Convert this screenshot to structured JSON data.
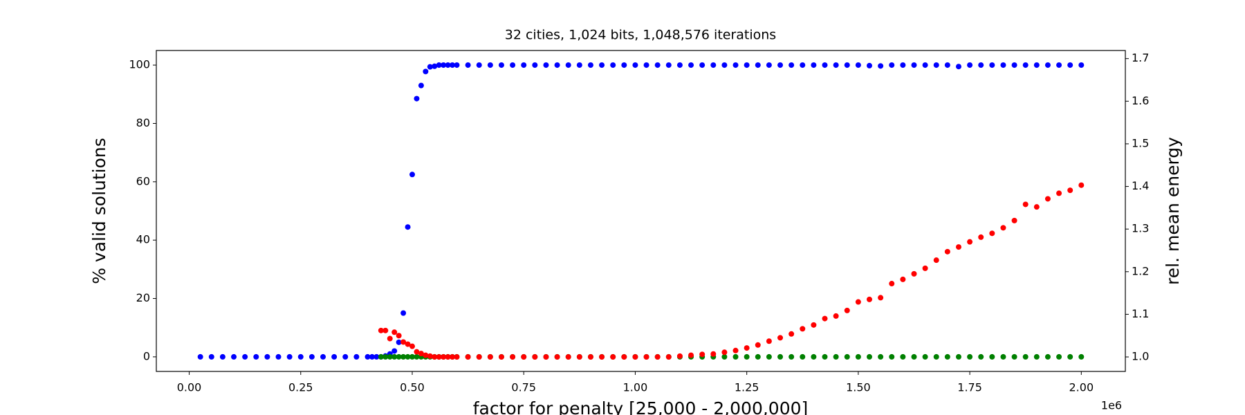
{
  "chart_data": {
    "type": "scatter",
    "title": "32 cities, 1,024 bits, 1,048,576 iterations",
    "xlabel": "factor for penalty [25,000 - 2,000,000]",
    "x_offset_label": "1e6",
    "ylabel": "% valid solutions",
    "ylabel_color": "#0000ff",
    "y2label": "rel. mean energy",
    "y2label_color": "#ff0000",
    "grid": false,
    "xlim": [
      -73750,
      2098750
    ],
    "ylim": [
      -5,
      105
    ],
    "y2lim": [
      0.966,
      1.719
    ],
    "xticks": [
      {
        "value": 0,
        "label": "0.00"
      },
      {
        "value": 250000,
        "label": "0.25"
      },
      {
        "value": 500000,
        "label": "0.50"
      },
      {
        "value": 750000,
        "label": "0.75"
      },
      {
        "value": 1000000,
        "label": "1.00"
      },
      {
        "value": 1250000,
        "label": "1.25"
      },
      {
        "value": 1500000,
        "label": "1.50"
      },
      {
        "value": 1750000,
        "label": "1.75"
      },
      {
        "value": 2000000,
        "label": "2.00"
      }
    ],
    "yticks": [
      0,
      20,
      40,
      60,
      80,
      100
    ],
    "y2ticks": [
      {
        "value": 1.0,
        "label": "1.0"
      },
      1.1,
      1.2,
      1.3,
      1.4,
      1.5,
      1.6,
      1.7
    ],
    "x": [
      25000,
      50000,
      75000,
      100000,
      125000,
      150000,
      175000,
      200000,
      225000,
      250000,
      275000,
      300000,
      325000,
      350000,
      375000,
      400000,
      410000,
      420000,
      430000,
      440000,
      450000,
      460000,
      470000,
      480000,
      490000,
      500000,
      510000,
      520000,
      530000,
      540000,
      550000,
      560000,
      570000,
      580000,
      590000,
      600000,
      625000,
      650000,
      675000,
      700000,
      725000,
      750000,
      775000,
      800000,
      825000,
      850000,
      875000,
      900000,
      925000,
      950000,
      975000,
      1000000,
      1025000,
      1050000,
      1075000,
      1100000,
      1125000,
      1150000,
      1175000,
      1200000,
      1225000,
      1250000,
      1275000,
      1300000,
      1325000,
      1350000,
      1375000,
      1400000,
      1425000,
      1450000,
      1475000,
      1500000,
      1525000,
      1550000,
      1575000,
      1600000,
      1625000,
      1650000,
      1675000,
      1700000,
      1725000,
      1750000,
      1775000,
      1800000,
      1825000,
      1850000,
      1875000,
      1900000,
      1925000,
      1950000,
      1975000,
      2000000
    ],
    "series": [
      {
        "color": "#0000ff",
        "axis": "y",
        "values": [
          0,
          0,
          0,
          0,
          0,
          0,
          0,
          0,
          0,
          0,
          0,
          0,
          0,
          0,
          0,
          0,
          0,
          0,
          0,
          0.3,
          1,
          2,
          5,
          15,
          44.5,
          62.5,
          88.5,
          93,
          97.8,
          99.4,
          99.6,
          100,
          100,
          100,
          100,
          100,
          100,
          100,
          100,
          100,
          100,
          100,
          100,
          100,
          100,
          100,
          100,
          100,
          100,
          100,
          100,
          100,
          100,
          100,
          100,
          100,
          100,
          100,
          100,
          100,
          100,
          100,
          100,
          100,
          100,
          100,
          100,
          100,
          100,
          100,
          100,
          100,
          99.8,
          99.7,
          100,
          100,
          100,
          100,
          100,
          100,
          99.5,
          100,
          100,
          100,
          100,
          100,
          100,
          100,
          100,
          100,
          100,
          100
        ]
      },
      {
        "color": "#008000",
        "axis": "y",
        "values": [
          null,
          null,
          null,
          null,
          null,
          null,
          null,
          null,
          null,
          null,
          null,
          null,
          null,
          null,
          null,
          null,
          null,
          null,
          0,
          0,
          0,
          0,
          0,
          0,
          0,
          0,
          0,
          0,
          0,
          0,
          0,
          0,
          0,
          0,
          0,
          0,
          0,
          0,
          0,
          0,
          0,
          0,
          0,
          0,
          0,
          0,
          0,
          0,
          0,
          0,
          0,
          0,
          0,
          0,
          0,
          0,
          0,
          0,
          0,
          0,
          0,
          0,
          0,
          0,
          0,
          0,
          0,
          0,
          0,
          0,
          0,
          0,
          0,
          0,
          0,
          0,
          0,
          0,
          0,
          0,
          0,
          0,
          0,
          0,
          0,
          0,
          0,
          0,
          0,
          0,
          0,
          0
        ]
      },
      {
        "color": "#ff0000",
        "axis": "y2",
        "values": [
          null,
          null,
          null,
          null,
          null,
          null,
          null,
          null,
          null,
          null,
          null,
          null,
          null,
          null,
          null,
          null,
          null,
          null,
          1.062,
          1.062,
          1.043,
          1.058,
          1.05,
          1.035,
          1.03,
          1.025,
          1.012,
          1.008,
          1.004,
          1.002,
          1.0,
          1.0,
          1.0,
          1.0,
          1.0,
          1.0,
          1.0,
          1.0,
          1.0,
          1.0,
          1.0,
          1.0,
          1.0,
          1.0,
          1.0,
          1.0,
          1.0,
          1.0,
          1.0,
          1.0,
          1.0,
          1.0,
          1.0,
          1.0,
          1.0,
          1.002,
          1.004,
          1.006,
          1.007,
          1.011,
          1.015,
          1.021,
          1.028,
          1.037,
          1.045,
          1.054,
          1.066,
          1.075,
          1.09,
          1.096,
          1.109,
          1.129,
          1.135,
          1.139,
          1.172,
          1.182,
          1.195,
          1.208,
          1.227,
          1.247,
          1.258,
          1.27,
          1.281,
          1.29,
          1.303,
          1.32,
          1.358,
          1.352,
          1.371,
          1.384,
          1.391,
          1.403
        ]
      }
    ]
  }
}
